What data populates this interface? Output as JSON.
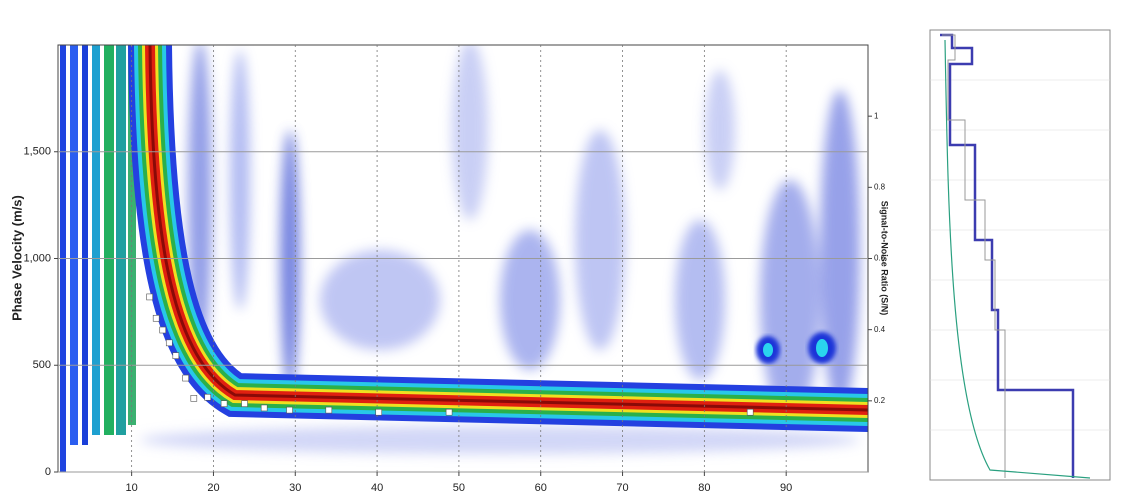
{
  "chart_data": {
    "type": "scatter",
    "ylabel": "Phase Velocity (m/s)",
    "y2label": "Signal-to-Noise Ratio (S/N)",
    "x": [
      12.2,
      13,
      13.8,
      14.6,
      15.4,
      16.6,
      17.6,
      19.3,
      21.3,
      23.8,
      26.2,
      29.3,
      34.1,
      40.2,
      48.8,
      85.6
    ],
    "series": [
      {
        "color": "#ffffff",
        "values": [
          820,
          720,
          665,
          605,
          545,
          440,
          345,
          350,
          320,
          320,
          300,
          290,
          290,
          280,
          280,
          280
        ]
      }
    ],
    "xlim": [
      1,
      100
    ],
    "xticks": [
      10,
      20,
      30,
      40,
      50,
      60,
      70,
      80,
      90
    ],
    "ylim": [
      0,
      2000
    ],
    "yticks": [
      0,
      500,
      {
        "value": 1000,
        "label": "1,000"
      },
      {
        "value": 1500,
        "label": "1,500"
      }
    ],
    "y2lim": [
      0,
      1.2
    ],
    "y2ticks": [
      0.2,
      0.4,
      0.6,
      0.8,
      1
    ],
    "grid": true
  }
}
